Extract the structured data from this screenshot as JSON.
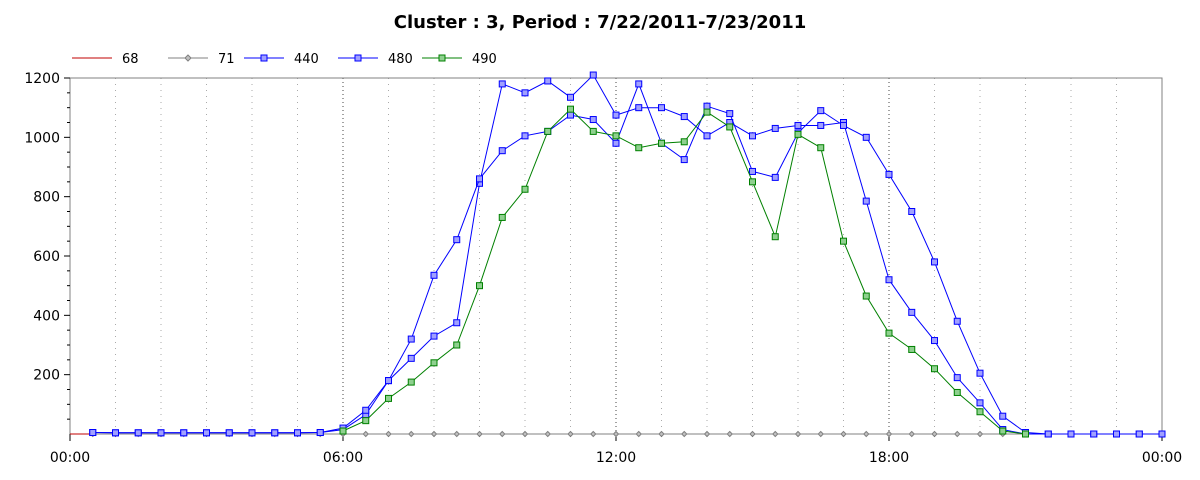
{
  "chart_data": {
    "type": "line",
    "title": "Cluster : 3, Period : 7/22/2011-7/23/2011",
    "xlabel": "",
    "ylabel": "",
    "x_ticks": [
      "00:00",
      "06:00",
      "12:00",
      "18:00",
      "00:00"
    ],
    "y_ticks": [
      200,
      400,
      600,
      800,
      1000,
      1200
    ],
    "xlim": [
      0,
      24
    ],
    "ylim": [
      0,
      1200
    ],
    "grid": true,
    "legend_position": "top-left",
    "series": [
      {
        "name": "68",
        "color": "#c00000",
        "marker": "none",
        "x": [
          0,
          24
        ],
        "values": [
          0,
          0
        ]
      },
      {
        "name": "71",
        "color": "#808080",
        "marker": "diamond",
        "x": [
          0.5,
          1.0,
          1.5,
          2.0,
          2.5,
          3.0,
          3.5,
          4.0,
          4.5,
          5.0,
          5.5,
          6.0,
          6.5,
          7.0,
          7.5,
          8.0,
          8.5,
          9.0,
          9.5,
          10.0,
          10.5,
          11.0,
          11.5,
          12.0,
          12.5,
          13.0,
          13.5,
          14.0,
          14.5,
          15.0,
          15.5,
          16.0,
          16.5,
          17.0,
          17.5,
          18.0,
          18.5,
          19.0,
          19.5,
          20.0,
          20.5,
          21.0,
          21.5,
          22.0,
          22.5,
          23.0,
          23.5,
          24.0
        ],
        "values": [
          0,
          0,
          0,
          0,
          0,
          0,
          0,
          0,
          0,
          0,
          0,
          0,
          0,
          0,
          0,
          0,
          0,
          0,
          0,
          0,
          0,
          0,
          0,
          0,
          0,
          0,
          0,
          0,
          0,
          0,
          0,
          0,
          0,
          0,
          0,
          0,
          0,
          0,
          0,
          0,
          0,
          0,
          0,
          0,
          0,
          0,
          0,
          0
        ]
      },
      {
        "name": "440",
        "color": "#0000ff",
        "marker": "square",
        "x": [
          0.5,
          1.0,
          1.5,
          2.0,
          2.5,
          3.0,
          3.5,
          4.0,
          4.5,
          5.0,
          5.5,
          6.0,
          6.5,
          7.0,
          7.5,
          8.0,
          8.5,
          9.0,
          9.5,
          10.0,
          10.5,
          11.0,
          11.5,
          12.0,
          12.5,
          13.0,
          13.5,
          14.0,
          14.5,
          15.0,
          15.5,
          16.0,
          16.5,
          17.0,
          17.5,
          18.0,
          18.5,
          19.0,
          19.5,
          20.0,
          20.5,
          21.0,
          21.5,
          22.0,
          22.5,
          23.0,
          23.5,
          24.0
        ],
        "values": [
          5,
          4,
          4,
          4,
          4,
          4,
          4,
          4,
          4,
          4,
          5,
          15,
          65,
          180,
          255,
          330,
          375,
          845,
          1180,
          1150,
          1190,
          1135,
          1210,
          1075,
          1100,
          1100,
          1070,
          1005,
          1050,
          1005,
          1030,
          1040,
          1040,
          1050,
          785,
          520,
          410,
          315,
          190,
          105,
          15,
          0,
          0,
          0,
          0,
          0,
          0,
          0
        ]
      },
      {
        "name": "480",
        "color": "#0000ff",
        "marker": "square",
        "x": [
          0.5,
          1.0,
          1.5,
          2.0,
          2.5,
          3.0,
          3.5,
          4.0,
          4.5,
          5.0,
          5.5,
          6.0,
          6.5,
          7.0,
          7.5,
          8.0,
          8.5,
          9.0,
          9.5,
          10.0,
          10.5,
          11.0,
          11.5,
          12.0,
          12.5,
          13.0,
          13.5,
          14.0,
          14.5,
          15.0,
          15.5,
          16.0,
          16.5,
          17.0,
          17.5,
          18.0,
          18.5,
          19.0,
          19.5,
          20.0,
          20.5,
          21.0,
          21.5,
          22.0,
          22.5,
          23.0,
          23.5,
          24.0
        ],
        "values": [
          5,
          4,
          4,
          4,
          4,
          4,
          4,
          4,
          4,
          4,
          5,
          20,
          80,
          180,
          320,
          535,
          655,
          860,
          955,
          1005,
          1020,
          1075,
          1060,
          980,
          1180,
          980,
          925,
          1105,
          1080,
          885,
          865,
          1015,
          1090,
          1040,
          1000,
          875,
          750,
          580,
          380,
          205,
          60,
          5,
          0,
          0,
          0,
          0,
          0,
          0
        ]
      },
      {
        "name": "490",
        "color": "#008000",
        "marker": "square",
        "x": [
          6.0,
          6.5,
          7.0,
          7.5,
          8.0,
          8.5,
          9.0,
          9.5,
          10.0,
          10.5,
          11.0,
          11.5,
          12.0,
          12.5,
          13.0,
          13.5,
          14.0,
          14.5,
          15.0,
          15.5,
          16.0,
          16.5,
          17.0,
          17.5,
          18.0,
          18.5,
          19.0,
          19.5,
          20.0,
          20.5,
          21.0
        ],
        "values": [
          10,
          45,
          120,
          175,
          240,
          300,
          500,
          730,
          825,
          1020,
          1095,
          1020,
          1005,
          965,
          980,
          985,
          1085,
          1035,
          850,
          665,
          1010,
          965,
          650,
          465,
          340,
          285,
          220,
          140,
          75,
          10,
          0
        ]
      }
    ]
  }
}
